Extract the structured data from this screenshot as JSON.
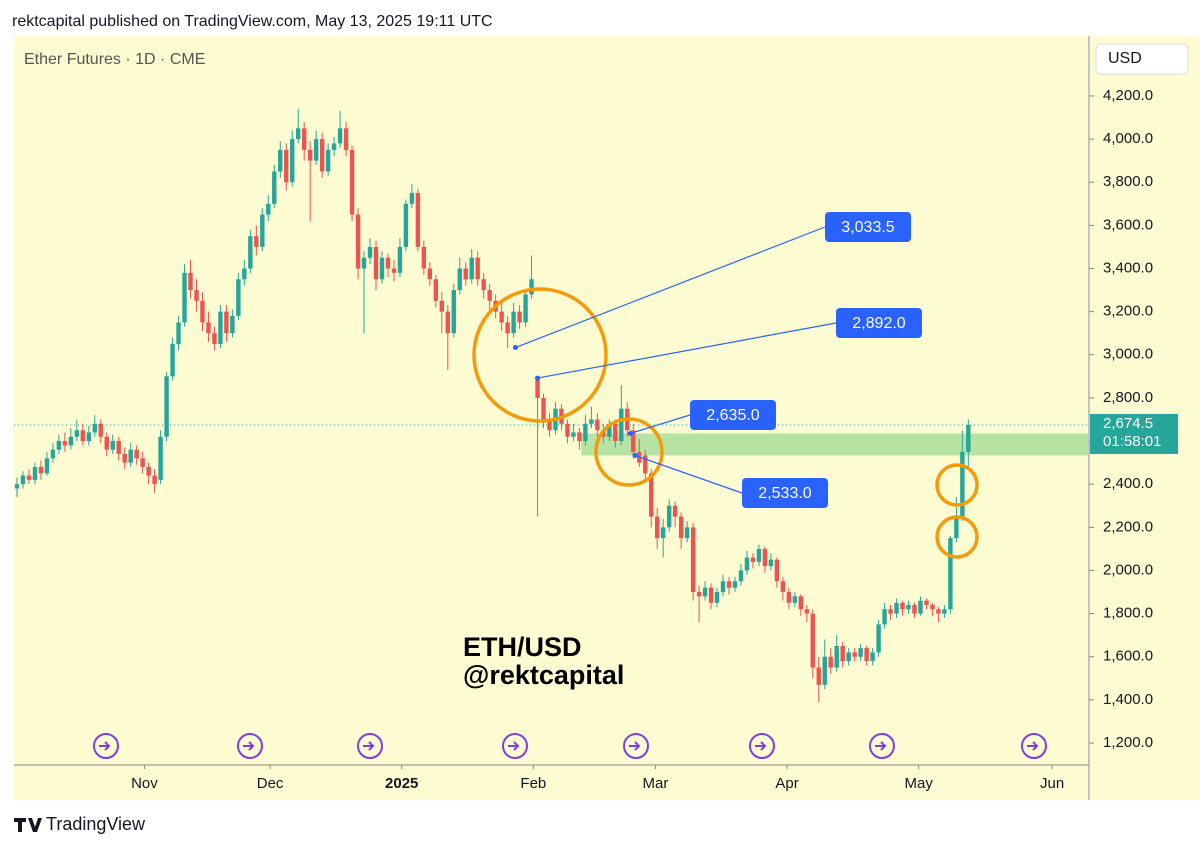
{
  "header": "rektcapital published on TradingView.com, May 13, 2025 19:11 UTC",
  "footer": "TradingView",
  "chart_data": {
    "type": "candlestick",
    "title": "Ether Futures · 1D · CME",
    "currency": "USD",
    "watermark": [
      "ETH/USD",
      "@rektcapital"
    ],
    "up_color": "#26a69a",
    "down_color": "#ef5350",
    "xlim": [
      -0.5,
      179
    ],
    "ylim": [
      1098,
      4478
    ],
    "xticks": [
      {
        "value": 21.3,
        "label": "Nov"
      },
      {
        "value": 42.3,
        "label": "Dec"
      },
      {
        "value": 64.3,
        "label": "2025"
      },
      {
        "value": 86.3,
        "label": "Feb"
      },
      {
        "value": 106.7,
        "label": "Mar"
      },
      {
        "value": 128.7,
        "label": "Apr"
      },
      {
        "value": 150.7,
        "label": "May"
      },
      {
        "value": 173,
        "label": "Jun"
      }
    ],
    "yticks": [
      {
        "value": 1200,
        "label": "1,200.0"
      },
      {
        "value": 1400,
        "label": "1,400.0"
      },
      {
        "value": 1600,
        "label": "1,600.0"
      },
      {
        "value": 1800,
        "label": "1,800.0"
      },
      {
        "value": 2000,
        "label": "2,000.0"
      },
      {
        "value": 2200,
        "label": "2,200.0"
      },
      {
        "value": 2400,
        "label": "2,400.0"
      },
      {
        "value": 2600,
        "label": "2,600.0"
      },
      {
        "value": 2800,
        "label": "2,800.0"
      },
      {
        "value": 3000,
        "label": "3,000.0"
      },
      {
        "value": 3200,
        "label": "3,200.0"
      },
      {
        "value": 3400,
        "label": "3,400.0"
      },
      {
        "value": 3600,
        "label": "3,600.0"
      },
      {
        "value": 3800,
        "label": "3,800.0"
      },
      {
        "value": 4000,
        "label": "4,000.0"
      },
      {
        "value": 4200,
        "label": "4,200.0"
      }
    ],
    "last_price": {
      "value": 2674.5,
      "label": "2,674.5"
    },
    "countdown": "01:58:01",
    "zone": {
      "x": 94.3,
      "low": 2533,
      "high": 2635,
      "color": "#b7e4a4"
    },
    "annotations": [
      {
        "x": 83.3,
        "value": 3033.5,
        "label": "3,033.5"
      },
      {
        "x": 87,
        "value": 2892,
        "label": "2,892.0"
      },
      {
        "x": 102.5,
        "value": 2635,
        "label": "2,635.0"
      },
      {
        "x": 103.3,
        "value": 2533,
        "label": "2,533.0"
      }
    ],
    "candles": [
      [
        2380,
        2430,
        2340,
        2400
      ],
      [
        2400,
        2460,
        2380,
        2440
      ],
      [
        2440,
        2470,
        2400,
        2420
      ],
      [
        2420,
        2500,
        2400,
        2480
      ],
      [
        2480,
        2510,
        2420,
        2450
      ],
      [
        2450,
        2550,
        2440,
        2520
      ],
      [
        2520,
        2590,
        2500,
        2560
      ],
      [
        2560,
        2630,
        2540,
        2600
      ],
      [
        2600,
        2640,
        2550,
        2580
      ],
      [
        2580,
        2660,
        2560,
        2620
      ],
      [
        2620,
        2700,
        2600,
        2650
      ],
      [
        2650,
        2680,
        2580,
        2600
      ],
      [
        2600,
        2670,
        2580,
        2640
      ],
      [
        2640,
        2720,
        2620,
        2680
      ],
      [
        2680,
        2700,
        2590,
        2620
      ],
      [
        2620,
        2640,
        2530,
        2560
      ],
      [
        2560,
        2630,
        2540,
        2600
      ],
      [
        2600,
        2620,
        2510,
        2540
      ],
      [
        2540,
        2570,
        2470,
        2500
      ],
      [
        2500,
        2590,
        2480,
        2560
      ],
      [
        2560,
        2580,
        2490,
        2520
      ],
      [
        2520,
        2550,
        2450,
        2480
      ],
      [
        2480,
        2500,
        2400,
        2440
      ],
      [
        2440,
        2470,
        2360,
        2400
      ],
      [
        2420,
        2650,
        2400,
        2620
      ],
      [
        2620,
        2920,
        2600,
        2900
      ],
      [
        2900,
        3080,
        2880,
        3050
      ],
      [
        3050,
        3180,
        3020,
        3150
      ],
      [
        3150,
        3420,
        3130,
        3380
      ],
      [
        3380,
        3440,
        3260,
        3300
      ],
      [
        3300,
        3350,
        3200,
        3250
      ],
      [
        3250,
        3290,
        3110,
        3150
      ],
      [
        3150,
        3200,
        3060,
        3100
      ],
      [
        3100,
        3130,
        3020,
        3050
      ],
      [
        3050,
        3230,
        3030,
        3200
      ],
      [
        3200,
        3230,
        3060,
        3100
      ],
      [
        3100,
        3210,
        3080,
        3180
      ],
      [
        3180,
        3380,
        3160,
        3350
      ],
      [
        3350,
        3440,
        3320,
        3400
      ],
      [
        3400,
        3580,
        3380,
        3550
      ],
      [
        3550,
        3600,
        3460,
        3500
      ],
      [
        3500,
        3680,
        3480,
        3650
      ],
      [
        3650,
        3740,
        3620,
        3700
      ],
      [
        3700,
        3880,
        3680,
        3850
      ],
      [
        3850,
        3990,
        3820,
        3950
      ],
      [
        3950,
        3980,
        3760,
        3800
      ],
      [
        3800,
        4040,
        3780,
        4000
      ],
      [
        4000,
        4140,
        3980,
        4050
      ],
      [
        4050,
        4080,
        3900,
        3950
      ],
      [
        3950,
        3990,
        3620,
        3900
      ],
      [
        3900,
        4040,
        3880,
        4000
      ],
      [
        4000,
        4030,
        3820,
        3850
      ],
      [
        3850,
        3980,
        3830,
        3950
      ],
      [
        3950,
        4010,
        3920,
        3980
      ],
      [
        3980,
        4130,
        3960,
        4050
      ],
      [
        4050,
        4080,
        3920,
        3950
      ],
      [
        3950,
        3970,
        3620,
        3650
      ],
      [
        3650,
        3680,
        3350,
        3400
      ],
      [
        3400,
        3480,
        3100,
        3450
      ],
      [
        3450,
        3540,
        3420,
        3500
      ],
      [
        3500,
        3530,
        3300,
        3350
      ],
      [
        3350,
        3480,
        3330,
        3450
      ],
      [
        3450,
        3470,
        3360,
        3400
      ],
      [
        3400,
        3440,
        3340,
        3380
      ],
      [
        3380,
        3540,
        3360,
        3500
      ],
      [
        3500,
        3720,
        3480,
        3700
      ],
      [
        3700,
        3790,
        3680,
        3750
      ],
      [
        3750,
        3770,
        3480,
        3500
      ],
      [
        3500,
        3530,
        3370,
        3400
      ],
      [
        3400,
        3430,
        3320,
        3350
      ],
      [
        3350,
        3370,
        3220,
        3250
      ],
      [
        3250,
        3290,
        3100,
        3200
      ],
      [
        3200,
        3230,
        2930,
        3100
      ],
      [
        3100,
        3330,
        3080,
        3300
      ],
      [
        3300,
        3450,
        3280,
        3400
      ],
      [
        3400,
        3430,
        3320,
        3350
      ],
      [
        3350,
        3490,
        3330,
        3450
      ],
      [
        3450,
        3480,
        3320,
        3350
      ],
      [
        3350,
        3380,
        3260,
        3300
      ],
      [
        3300,
        3330,
        3200,
        3250
      ],
      [
        3250,
        3280,
        3170,
        3200
      ],
      [
        3200,
        3240,
        3110,
        3150
      ],
      [
        3150,
        3180,
        3030,
        3100
      ],
      [
        3100,
        3240,
        3080,
        3200
      ],
      [
        3200,
        3230,
        3120,
        3150
      ],
      [
        3150,
        3300,
        3130,
        3280
      ],
      [
        3280,
        3460,
        3260,
        3350
      ],
      [
        2892,
        2900,
        2250,
        2800
      ],
      [
        2800,
        2820,
        2660,
        2700
      ],
      [
        2700,
        2730,
        2620,
        2650
      ],
      [
        2650,
        2780,
        2630,
        2750
      ],
      [
        2750,
        2770,
        2650,
        2680
      ],
      [
        2680,
        2700,
        2590,
        2620
      ],
      [
        2620,
        2680,
        2600,
        2640
      ],
      [
        2640,
        2660,
        2560,
        2600
      ],
      [
        2600,
        2720,
        2580,
        2680
      ],
      [
        2680,
        2760,
        2660,
        2700
      ],
      [
        2700,
        2730,
        2620,
        2650
      ],
      [
        2650,
        2680,
        2590,
        2620
      ],
      [
        2620,
        2700,
        2600,
        2680
      ],
      [
        2680,
        2700,
        2570,
        2600
      ],
      [
        2600,
        2860,
        2580,
        2750
      ],
      [
        2750,
        2780,
        2620,
        2650
      ],
      [
        2650,
        2680,
        2520,
        2550
      ],
      [
        2550,
        2610,
        2480,
        2500
      ],
      [
        2533,
        2560,
        2420,
        2450
      ],
      [
        2450,
        2470,
        2200,
        2250
      ],
      [
        2250,
        2290,
        2100,
        2150
      ],
      [
        2150,
        2240,
        2060,
        2200
      ],
      [
        2200,
        2330,
        2180,
        2300
      ],
      [
        2300,
        2320,
        2200,
        2250
      ],
      [
        2250,
        2270,
        2100,
        2150
      ],
      [
        2150,
        2230,
        2130,
        2200
      ],
      [
        2200,
        2220,
        1860,
        1900
      ],
      [
        1900,
        1930,
        1760,
        1880
      ],
      [
        1880,
        1950,
        1860,
        1920
      ],
      [
        1920,
        1940,
        1820,
        1850
      ],
      [
        1850,
        1920,
        1830,
        1900
      ],
      [
        1900,
        1980,
        1880,
        1950
      ],
      [
        1950,
        1970,
        1890,
        1920
      ],
      [
        1920,
        1970,
        1900,
        1950
      ],
      [
        1950,
        2030,
        1930,
        2000
      ],
      [
        2000,
        2090,
        1980,
        2060
      ],
      [
        2060,
        2080,
        2010,
        2040
      ],
      [
        2040,
        2120,
        2020,
        2100
      ],
      [
        2100,
        2110,
        1990,
        2020
      ],
      [
        2020,
        2080,
        2000,
        2050
      ],
      [
        2050,
        2060,
        1920,
        1950
      ],
      [
        1950,
        1970,
        1860,
        1900
      ],
      [
        1900,
        1920,
        1820,
        1850
      ],
      [
        1850,
        1900,
        1830,
        1880
      ],
      [
        1880,
        1890,
        1790,
        1820
      ],
      [
        1820,
        1840,
        1760,
        1800
      ],
      [
        1800,
        1820,
        1500,
        1550
      ],
      [
        1550,
        1600,
        1390,
        1470
      ],
      [
        1470,
        1680,
        1450,
        1600
      ],
      [
        1600,
        1640,
        1520,
        1550
      ],
      [
        1550,
        1700,
        1530,
        1650
      ],
      [
        1650,
        1670,
        1550,
        1580
      ],
      [
        1580,
        1640,
        1560,
        1620
      ],
      [
        1620,
        1640,
        1580,
        1600
      ],
      [
        1600,
        1660,
        1580,
        1640
      ],
      [
        1640,
        1650,
        1560,
        1580
      ],
      [
        1580,
        1640,
        1560,
        1620
      ],
      [
        1620,
        1770,
        1600,
        1750
      ],
      [
        1750,
        1850,
        1730,
        1820
      ],
      [
        1820,
        1840,
        1770,
        1800
      ],
      [
        1800,
        1870,
        1780,
        1850
      ],
      [
        1850,
        1860,
        1790,
        1820
      ],
      [
        1820,
        1860,
        1800,
        1840
      ],
      [
        1840,
        1850,
        1780,
        1800
      ],
      [
        1800,
        1880,
        1790,
        1860
      ],
      [
        1860,
        1870,
        1820,
        1840
      ],
      [
        1840,
        1850,
        1790,
        1820
      ],
      [
        1820,
        1830,
        1760,
        1800
      ],
      [
        1800,
        1840,
        1780,
        1820
      ],
      [
        1820,
        2160,
        1800,
        2150
      ],
      [
        2150,
        2340,
        2130,
        2250
      ],
      [
        2250,
        2650,
        2230,
        2550
      ],
      [
        2550,
        2700,
        2480,
        2674.5
      ]
    ]
  }
}
